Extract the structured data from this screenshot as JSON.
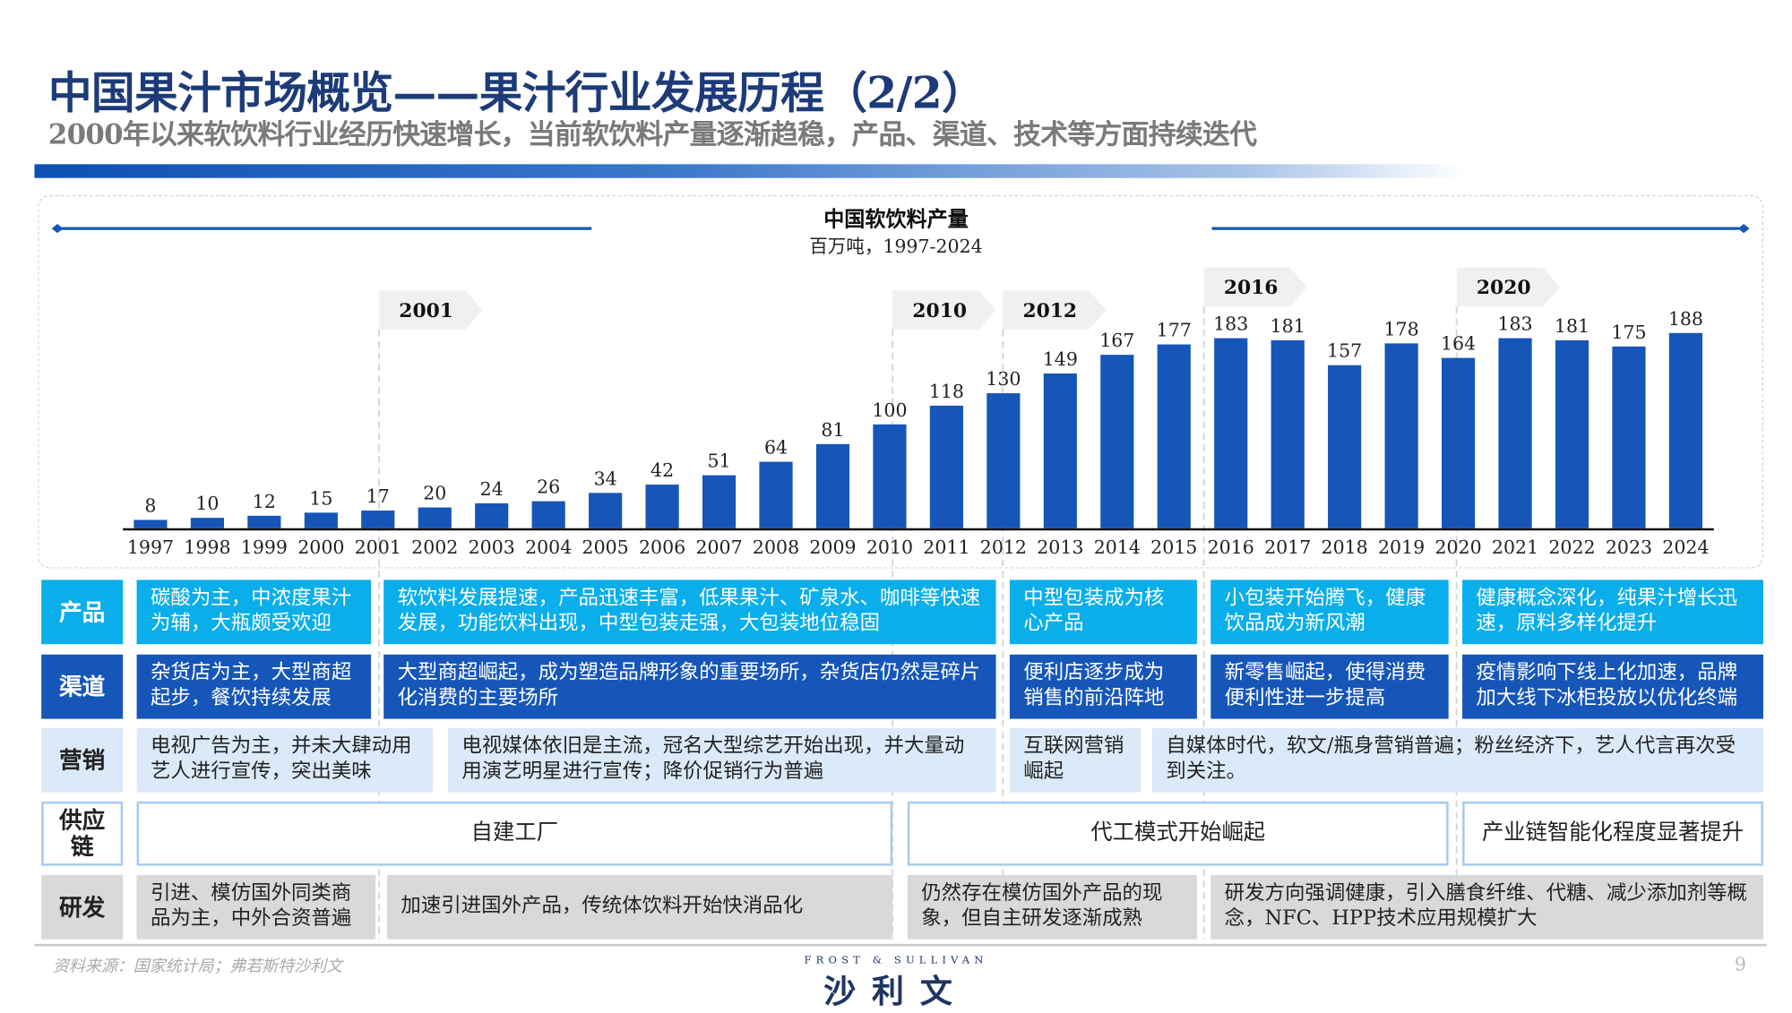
{
  "header": {
    "title": "中国果汁市场概览——果汁行业发展历程（2/2）",
    "subtitle": "2000年以来软饮料行业经历快速增长，当前软饮料产量逐渐趋稳，产品、渠道、技术等方面持续迭代"
  },
  "colors": {
    "bar": "#1656b8",
    "title": "#1d3b78",
    "product": "#0aaeea",
    "channel": "#1656b8",
    "marketing": "#dbeaf9",
    "supply_border": "#a9cbef",
    "rnd": "#d9d9d9"
  },
  "chart_data": {
    "type": "bar",
    "title": "中国软饮料产量",
    "subtitle": "百万吨，1997-2024",
    "categories": [
      "1997",
      "1998",
      "1999",
      "2000",
      "2001",
      "2002",
      "2003",
      "2004",
      "2005",
      "2006",
      "2007",
      "2008",
      "2009",
      "2010",
      "2011",
      "2012",
      "2013",
      "2014",
      "2015",
      "2016",
      "2017",
      "2018",
      "2019",
      "2020",
      "2021",
      "2022",
      "2023",
      "2024"
    ],
    "values": [
      8,
      10,
      12,
      15,
      17,
      20,
      24,
      26,
      34,
      42,
      51,
      64,
      81,
      100,
      118,
      130,
      149,
      167,
      177,
      183,
      181,
      157,
      178,
      164,
      183,
      181,
      175,
      188
    ],
    "ylim": [
      0,
      200
    ],
    "grid": false,
    "data_labels": true,
    "milestones": [
      "2001",
      "2010",
      "2012",
      "2016",
      "2020"
    ]
  },
  "rows": [
    {
      "label": "产品",
      "cells": [
        "碳酸为主，中浓度果汁为辅，大瓶颇受欢迎",
        "软饮料发展提速，产品迅速丰富，低果果汁、矿泉水、咖啡等快速发展，功能饮料出现，中型包装走强，大包装地位稳固",
        "中型包装成为核心产品",
        "小包装开始腾飞，健康饮品成为新风潮",
        "健康概念深化，纯果汁增长迅速，原料多样化提升"
      ]
    },
    {
      "label": "渠道",
      "cells": [
        "杂货店为主，大型商超起步，餐饮持续发展",
        "大型商超崛起，成为塑造品牌形象的重要场所，杂货店仍然是碎片化消费的主要场所",
        "便利店逐步成为销售的前沿阵地",
        "新零售崛起，使得消费便利性进一步提高",
        "疫情影响下线上化加速，品牌加大线下冰柜投放以优化终端"
      ]
    },
    {
      "label": "营销",
      "cells": [
        "电视广告为主，并未大肆动用艺人进行宣传，突出美味",
        "电视媒体依旧是主流，冠名大型综艺开始出现，并大量动用演艺明星进行宣传；降价促销行为普遍",
        "互联网营销崛起",
        "自媒体时代，软文/瓶身营销普遍；粉丝经济下，艺人代言再次受到关注。"
      ]
    },
    {
      "label": "供应链",
      "cells": [
        "自建工厂",
        "代工模式开始崛起",
        "产业链智能化程度显著提升"
      ]
    },
    {
      "label": "研发",
      "cells": [
        "引进、模仿国外同类商品为主，中外合资普遍",
        "加速引进国外产品，传统体饮料开始快消品化",
        "仍然存在模仿国外产品的现象，但自主研发逐渐成熟",
        "研发方向强调健康，引入膳食纤维、代糖、减少添加剂等概念，NFC、HPP技术应用规模扩大"
      ]
    }
  ],
  "footer": {
    "source": "资料来源：国家统计局；弗若斯特沙利文",
    "logo_en": "FROST & SULLIVAN",
    "logo_cn": "沙利文",
    "page": "9"
  }
}
